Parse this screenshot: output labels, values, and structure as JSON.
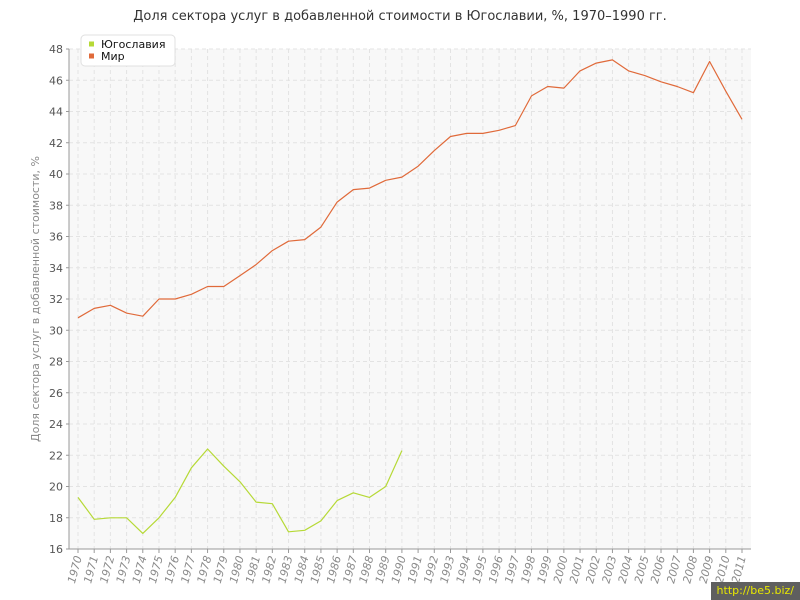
{
  "chart_data": {
    "type": "line",
    "title": "Доля сектора услуг в добавленной стоимости в Югославии, %, 1970–1990 гг.",
    "ylabel": "Доля сектора услуг в добавленной стоимости, %",
    "xlabel": "",
    "ylim": [
      16,
      48
    ],
    "y_ticks": [
      16,
      18,
      20,
      22,
      24,
      26,
      28,
      30,
      32,
      34,
      36,
      38,
      40,
      42,
      44,
      46,
      48
    ],
    "x": [
      1970,
      1971,
      1972,
      1973,
      1974,
      1975,
      1976,
      1977,
      1978,
      1979,
      1980,
      1981,
      1982,
      1983,
      1984,
      1985,
      1986,
      1987,
      1988,
      1989,
      1990,
      1991,
      1992,
      1993,
      1994,
      1995,
      1996,
      1997,
      1998,
      1999,
      2000,
      2001,
      2002,
      2003,
      2004,
      2005,
      2006,
      2007,
      2008,
      2009,
      2010,
      2011
    ],
    "grid": true,
    "legend_position": "top-left",
    "series": [
      {
        "name": "Югославия",
        "color": "#b6d936",
        "values": [
          19.3,
          17.9,
          18.0,
          18.0,
          17.0,
          18.0,
          19.3,
          21.2,
          22.4,
          21.3,
          20.3,
          19.0,
          18.9,
          17.1,
          17.2,
          17.8,
          19.1,
          19.6,
          19.3,
          20.0,
          22.3,
          null,
          null,
          null,
          null,
          null,
          null,
          null,
          null,
          null,
          null,
          null,
          null,
          null,
          null,
          null,
          null,
          null,
          null,
          null,
          null,
          null
        ]
      },
      {
        "name": "Мир",
        "color": "#e06a3a",
        "values": [
          30.8,
          31.4,
          31.6,
          31.1,
          30.9,
          32.0,
          32.0,
          32.3,
          32.8,
          32.8,
          33.5,
          34.2,
          35.1,
          35.7,
          35.8,
          36.6,
          38.2,
          39.0,
          39.1,
          39.6,
          39.8,
          40.5,
          41.5,
          42.4,
          42.6,
          42.6,
          42.8,
          43.1,
          45.0,
          45.6,
          45.5,
          46.6,
          47.1,
          47.3,
          46.6,
          46.3,
          45.9,
          45.6,
          45.2,
          47.2,
          45.3,
          43.5
        ]
      }
    ]
  },
  "watermark": "http://be5.biz/"
}
